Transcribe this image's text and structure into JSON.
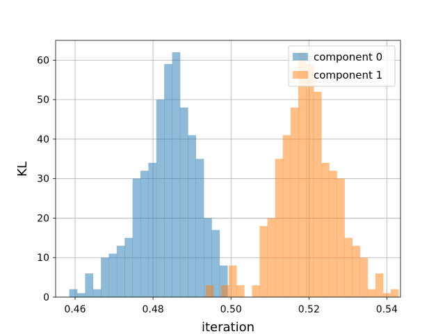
{
  "chart_data": {
    "type": "histogram",
    "title": "",
    "xlabel": "iteration",
    "ylabel": "KL",
    "xlim": [
      0.455,
      0.5435
    ],
    "ylim": [
      0,
      65
    ],
    "xticks": [
      {
        "value": 0.46,
        "label": "0.46"
      },
      {
        "value": 0.48,
        "label": "0.48"
      },
      {
        "value": 0.5,
        "label": "0.50"
      },
      {
        "value": 0.52,
        "label": "0.52"
      },
      {
        "value": 0.54,
        "label": "0.54"
      }
    ],
    "yticks": [
      {
        "value": 0,
        "label": "0"
      },
      {
        "value": 10,
        "label": "10"
      },
      {
        "value": 20,
        "label": "20"
      },
      {
        "value": 30,
        "label": "30"
      },
      {
        "value": 40,
        "label": "40"
      },
      {
        "value": 50,
        "label": "50"
      },
      {
        "value": 60,
        "label": "60"
      }
    ],
    "grid": true,
    "legend_position": "top-right",
    "series": [
      {
        "name": "component 0",
        "color": "#1f77b4",
        "alpha": 0.5,
        "bin_start": 0.4585,
        "bin_width": 0.00203,
        "counts": [
          2,
          1,
          6,
          2,
          10,
          11,
          13,
          15,
          30,
          32,
          34,
          50,
          59,
          62,
          48,
          41,
          35,
          20,
          17,
          8
        ]
      },
      {
        "name": "component 1",
        "color": "#ff7f0e",
        "alpha": 0.5,
        "bin_start": 0.4935,
        "bin_width": 0.00198,
        "counts": [
          3,
          0,
          3,
          8,
          3,
          0,
          3,
          18,
          20,
          35,
          41,
          48,
          62,
          59,
          52,
          34,
          32,
          30,
          15,
          13,
          10,
          2,
          6,
          1,
          2
        ]
      }
    ]
  }
}
